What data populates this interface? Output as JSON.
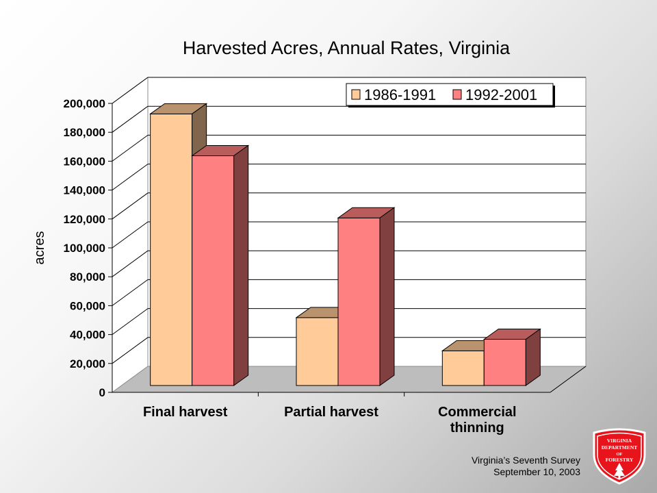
{
  "chart_data": {
    "type": "bar",
    "title": "Harvested Acres, Annual Rates, Virginia",
    "ylabel": "acres",
    "xlabel": "",
    "categories": [
      [
        "Final harvest"
      ],
      [
        "Partial harvest"
      ],
      [
        "Commercial",
        "thinning"
      ]
    ],
    "series": [
      {
        "name": "1986-1991",
        "values": [
          188000,
          47000,
          24000
        ],
        "color": "#ffcc99"
      },
      {
        "name": "1992-2001",
        "values": [
          159000,
          116000,
          32000
        ],
        "color": "#ff8080"
      }
    ],
    "ylim": [
      0,
      200000
    ],
    "yticks": [
      "0",
      "20,000",
      "40,000",
      "60,000",
      "80,000",
      "100,000",
      "120,000",
      "140,000",
      "160,000",
      "180,000",
      "200,000"
    ],
    "grid": true,
    "legend": "top-right",
    "projection": "3d"
  },
  "footer": {
    "line1": "Virginia’s Seventh Survey",
    "line2": "September 10, 2003"
  },
  "logo": {
    "icon": "forestry-shield-logo",
    "text": [
      "VIRGINIA",
      "DEPARTMENT",
      "OF",
      "FORESTRY"
    ],
    "color": "#e8141c"
  }
}
